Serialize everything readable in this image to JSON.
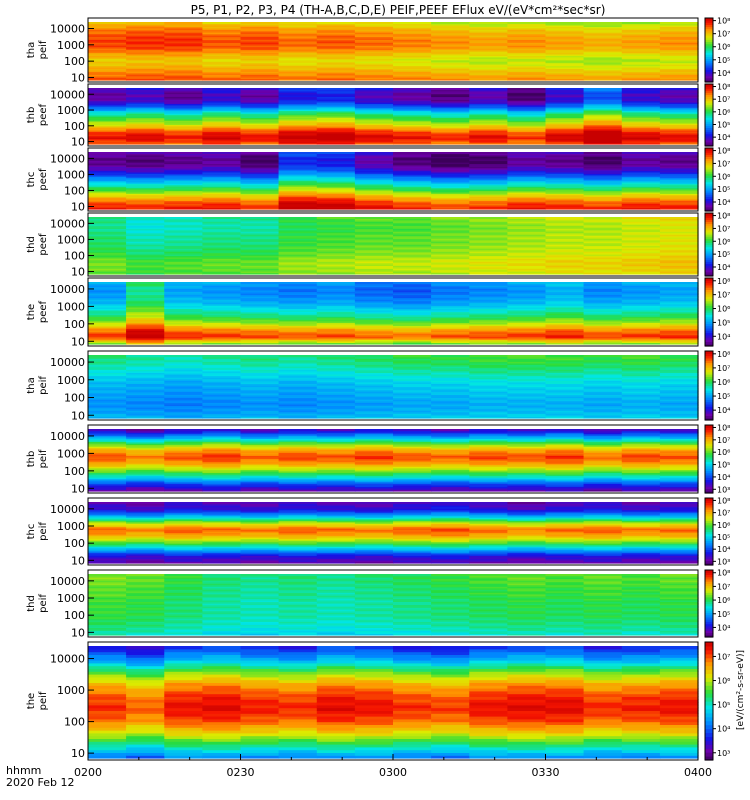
{
  "chart_data": {
    "type": "heatmap",
    "title": "P5, P1, P2, P3, P4 (TH-A,B,C,D,E) PEIF,PEEF EFlux eV/(eV*cm²*sec*sr)",
    "colorbar_label": "[eV/(cm²-s-sr-eV)]",
    "x_axis": {
      "name": "hhmm",
      "date": "2020 Feb 12",
      "tick_labels": [
        "0200",
        "0230",
        "0300",
        "0330",
        "0400"
      ],
      "range": [
        "02:00",
        "04:00"
      ]
    },
    "y_axis": {
      "unit": "eV",
      "scale": "log",
      "range": [
        7,
        25000
      ],
      "tick_labels": [
        "10",
        "100",
        "1000",
        "10000"
      ]
    },
    "panels": [
      {
        "name": "tha peif",
        "line1": "tha",
        "line2": "peif",
        "colorbar_ticks": [
          "10⁴",
          "10⁵",
          "10⁶",
          "10⁷",
          "10⁸"
        ],
        "color_range_log": [
          3.3,
          8.2
        ],
        "energy_profile_log": [
          7.6,
          7.4,
          7.1,
          6.9,
          7.2,
          7.6,
          7.7,
          7.6,
          7.4,
          7.0
        ],
        "time_mod": [
          0.0,
          0.1,
          0.1,
          -0.1,
          0.0,
          -0.2,
          -0.1,
          -0.2,
          -0.3,
          -0.4,
          -0.5,
          -0.4,
          -0.5,
          -0.6,
          -0.5,
          -0.4
        ]
      },
      {
        "name": "thb peef",
        "line1": "thb",
        "line2": "peef",
        "colorbar_ticks": [
          "10⁴",
          "10⁵",
          "10⁶",
          "10⁷",
          "10⁸"
        ],
        "color_range_log": [
          3.3,
          8.2
        ],
        "energy_profile_log": [
          7.5,
          8.0,
          7.6,
          6.8,
          6.2,
          5.6,
          4.6,
          3.8,
          3.6,
          3.9
        ],
        "time_mod": [
          0.0,
          0.2,
          -0.1,
          0.3,
          0.0,
          0.5,
          0.6,
          0.2,
          0.0,
          -0.2,
          0.1,
          -0.3,
          0.3,
          0.9,
          0.3,
          0.1
        ]
      },
      {
        "name": "thc peef",
        "line1": "thc",
        "line2": "peef",
        "colorbar_ticks": [
          "10⁴",
          "10⁵",
          "10⁶",
          "10⁷",
          "10⁸"
        ],
        "color_range_log": [
          3.3,
          8.2
        ],
        "energy_profile_log": [
          7.9,
          7.6,
          7.0,
          6.2,
          5.5,
          4.8,
          4.1,
          3.6,
          3.5,
          3.8
        ],
        "time_mod": [
          0.0,
          -0.1,
          0.0,
          0.1,
          -0.2,
          0.8,
          0.7,
          0.2,
          -0.1,
          -0.3,
          -0.2,
          0.1,
          0.0,
          -0.2,
          0.1,
          0.0
        ]
      },
      {
        "name": "thd peef",
        "line1": "thd",
        "line2": "peef",
        "colorbar_ticks": [
          "10⁴",
          "10⁵",
          "10⁶",
          "10⁷",
          "10⁸"
        ],
        "color_range_log": [
          3.3,
          8.2
        ],
        "energy_profile_log": [
          6.4,
          6.5,
          6.5,
          6.3,
          6.2,
          6.1,
          6.1,
          6.0,
          6.0,
          6.1
        ],
        "time_mod": [
          -0.2,
          -0.5,
          -0.4,
          -0.3,
          -0.3,
          0.0,
          0.1,
          0.2,
          0.2,
          0.3,
          0.4,
          0.5,
          0.6,
          0.6,
          0.7,
          0.8
        ]
      },
      {
        "name": "the peef",
        "line1": "the",
        "line2": "peef",
        "colorbar_ticks": [
          "10⁴",
          "10⁵",
          "10⁶",
          "10⁷",
          "10⁸"
        ],
        "color_range_log": [
          3.3,
          8.2
        ],
        "energy_profile_log": [
          6.4,
          7.8,
          7.4,
          6.6,
          6.0,
          5.6,
          5.2,
          5.0,
          4.9,
          5.1
        ],
        "time_mod": [
          0.0,
          0.9,
          0.1,
          0.0,
          -0.1,
          -0.2,
          -0.1,
          -0.3,
          -0.4,
          -0.2,
          -0.1,
          0.0,
          0.2,
          -0.1,
          0.0,
          0.1
        ]
      },
      {
        "name": "tha peif",
        "line1": "tha",
        "line2": "peif",
        "colorbar_ticks": [
          "10⁴",
          "10⁵",
          "10⁶",
          "10⁷",
          "10⁸"
        ],
        "color_range_log": [
          3.3,
          8.2
        ],
        "energy_profile_log": [
          5.2,
          5.0,
          4.9,
          5.0,
          5.1,
          5.2,
          5.4,
          5.6,
          5.8,
          5.9
        ],
        "time_mod": [
          0.0,
          -0.1,
          -0.2,
          -0.1,
          0.0,
          -0.1,
          0.0,
          0.1,
          0.2,
          0.2,
          0.3,
          0.3,
          0.3,
          0.2,
          0.3,
          0.2
        ]
      },
      {
        "name": "thb peif",
        "line1": "thb",
        "line2": "peif",
        "colorbar_ticks": [
          "10³",
          "10⁴",
          "10⁵",
          "10⁶",
          "10⁷",
          "10⁸"
        ],
        "color_range_log": [
          2.7,
          8.2
        ],
        "energy_profile_log": [
          3.2,
          4.0,
          5.2,
          6.2,
          7.1,
          7.6,
          7.1,
          6.0,
          4.6,
          3.4
        ],
        "time_mod": [
          0.0,
          -0.3,
          0.0,
          0.2,
          -0.1,
          0.1,
          0.0,
          0.2,
          0.0,
          -0.1,
          0.1,
          0.0,
          0.2,
          -0.2,
          0.1,
          0.0
        ]
      },
      {
        "name": "thc peif",
        "line1": "thc",
        "line2": "peif",
        "colorbar_ticks": [
          "10³",
          "10⁴",
          "10⁵",
          "10⁶",
          "10⁷",
          "10⁸"
        ],
        "color_range_log": [
          2.7,
          8.2
        ],
        "energy_profile_log": [
          3.2,
          3.6,
          4.8,
          6.0,
          7.0,
          7.5,
          6.4,
          4.8,
          3.6,
          3.3
        ],
        "time_mod": [
          0.0,
          -0.2,
          0.1,
          0.0,
          -0.1,
          0.1,
          0.0,
          -0.1,
          0.1,
          0.2,
          0.0,
          -0.2,
          0.0,
          0.1,
          -0.1,
          0.0
        ]
      },
      {
        "name": "thd peif",
        "line1": "thd",
        "line2": "peif",
        "colorbar_ticks": [
          "10⁴",
          "10⁵",
          "10⁶",
          "10⁷",
          "10⁸"
        ],
        "color_range_log": [
          3.3,
          8.2
        ],
        "energy_profile_log": [
          5.5,
          5.7,
          5.8,
          5.9,
          5.9,
          5.9,
          6.0,
          6.0,
          6.1,
          6.1
        ],
        "time_mod": [
          0.3,
          0.2,
          0.0,
          -0.2,
          -0.3,
          -0.2,
          -0.3,
          -0.2,
          -0.1,
          0.0,
          0.1,
          0.2,
          0.1,
          0.2,
          0.1,
          0.2
        ]
      },
      {
        "name": "the peif",
        "line1": "the",
        "line2": "peif",
        "colorbar_ticks": [
          "10³",
          "10⁴",
          "10⁵",
          "10⁶",
          "10⁷"
        ],
        "color_range_log": [
          2.7,
          7.6
        ],
        "energy_profile_log": [
          4.2,
          5.2,
          6.2,
          6.9,
          7.2,
          7.0,
          6.5,
          5.6,
          4.4,
          3.6
        ],
        "time_mod": [
          0.0,
          -0.3,
          0.2,
          0.3,
          0.1,
          0.0,
          0.3,
          0.2,
          0.0,
          -0.1,
          0.2,
          0.3,
          0.3,
          0.0,
          0.1,
          0.2
        ]
      }
    ]
  }
}
